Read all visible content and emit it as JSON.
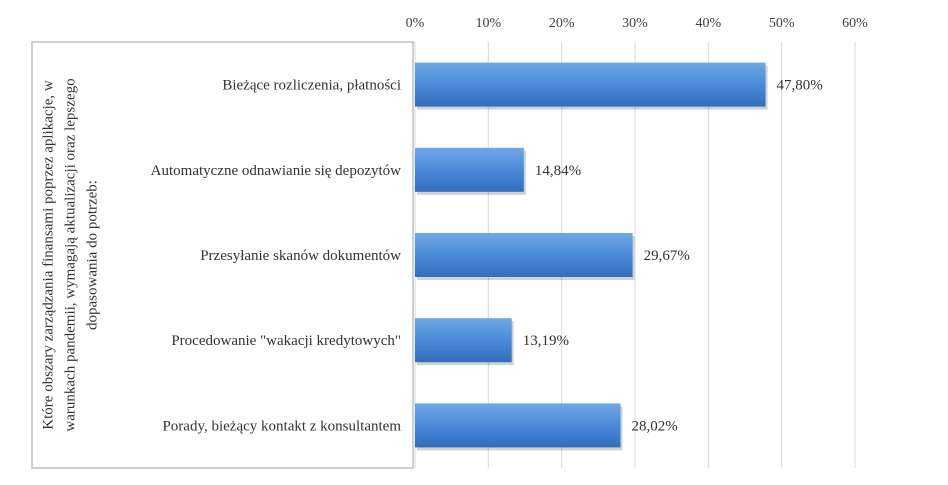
{
  "chart_data": {
    "type": "bar",
    "orientation": "horizontal",
    "ylabel": "Które obszary zarządzania finansami poprzez aplikacje, w warunkach pandemii, wymagają aktualizacji oraz lepszego dopasowania do potrzeb:",
    "ylabel_lines": [
      "Które obszary zarządzania finansami poprzez aplikacje, w",
      "warunkach pandemii, wymagają aktualizacji oraz lepszego",
      "dopasowania do potrzeb:"
    ],
    "categories": [
      "Bieżące rozliczenia, płatności",
      "Automatyczne odnawianie się depozytów",
      "Przesyłanie skanów dokumentów",
      "Procedowanie \"wakacji kredytowych\"",
      "Porady, bieżący kontakt z konsultantem"
    ],
    "values": [
      47.8,
      14.84,
      29.67,
      13.19,
      28.02
    ],
    "data_labels": [
      "47,80%",
      "14,84%",
      "29,67%",
      "13,19%",
      "28,02%"
    ],
    "xlim": [
      0,
      60
    ],
    "x_ticks": [
      0,
      10,
      20,
      30,
      40,
      50,
      60
    ],
    "x_tick_labels": [
      "0%",
      "10%",
      "20%",
      "30%",
      "40%",
      "50%",
      "60%"
    ],
    "x_axis_position": "top",
    "grid": "vertical",
    "legend": "none",
    "colors": {
      "bar_top": "#6fa8e8",
      "bar_mid": "#4a8ad8",
      "bar_bottom": "#2f6fbd",
      "gridline": "#d9d9d9",
      "label_box_border": "#bfbfbf"
    }
  }
}
